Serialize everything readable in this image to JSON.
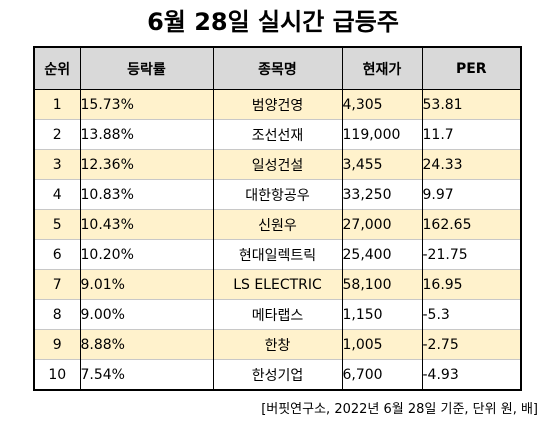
{
  "title": "6월 28일 실시간 급등주",
  "headers": {
    "rank": "순위",
    "change": "등락률",
    "name": "종목명",
    "price": "현재가",
    "per": "PER"
  },
  "rows": [
    {
      "rank": "1",
      "change": "15.73%",
      "name": "범양건영",
      "price": "4,305",
      "per": "53.81"
    },
    {
      "rank": "2",
      "change": "13.88%",
      "name": "조선선재",
      "price": "119,000",
      "per": "11.7"
    },
    {
      "rank": "3",
      "change": "12.36%",
      "name": "일성건설",
      "price": "3,455",
      "per": "24.33"
    },
    {
      "rank": "4",
      "change": "10.83%",
      "name": "대한항공우",
      "price": "33,250",
      "per": "9.97"
    },
    {
      "rank": "5",
      "change": "10.43%",
      "name": "신원우",
      "price": "27,000",
      "per": "162.65"
    },
    {
      "rank": "6",
      "change": "10.20%",
      "name": "현대일렉트릭",
      "price": "25,400",
      "per": "-21.75"
    },
    {
      "rank": "7",
      "change": "9.01%",
      "name": "LS ELECTRIC",
      "price": "58,100",
      "per": "16.95"
    },
    {
      "rank": "8",
      "change": "9.00%",
      "name": "메타랩스",
      "price": "1,150",
      "per": "-5.3"
    },
    {
      "rank": "9",
      "change": "8.88%",
      "name": "한창",
      "price": "1,005",
      "per": "-2.75"
    },
    {
      "rank": "10",
      "change": "7.54%",
      "name": "한성기업",
      "price": "6,700",
      "per": "-4.93"
    }
  ],
  "source": "[버핏연구소, 2022년 6월 28일 기준, 단위 원, 배]",
  "colors": {
    "header_bg": "#d9d9d9",
    "odd_row_bg": "#fff2cc",
    "even_row_bg": "#ffffff"
  }
}
